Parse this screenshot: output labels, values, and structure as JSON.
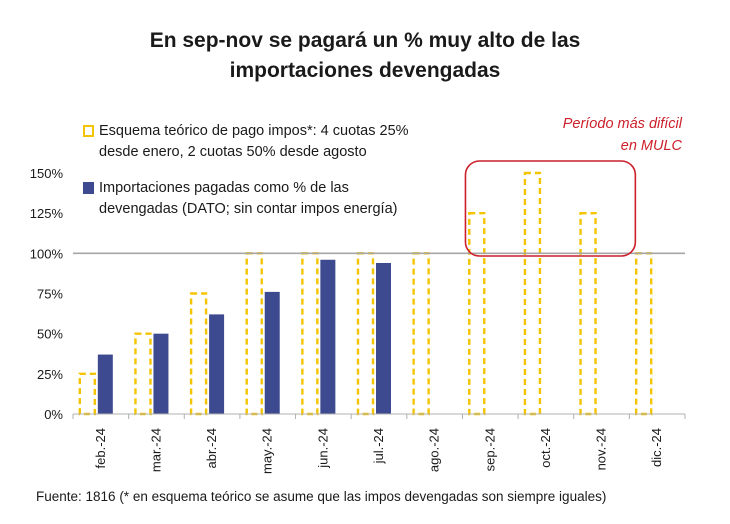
{
  "title_line1": "En sep-nov se pagará un % muy alto de las",
  "title_line2": "importaciones devengadas",
  "annotation_line1": "Período más difícil",
  "annotation_line2": "en MULC",
  "source": "Fuente: 1816 (* en esquema teórico se asume que las impos devengadas son siempre iguales)",
  "colors": {
    "theoretical": "#f5c400",
    "actual": "#3d4a8f",
    "annotation": "#cc1f2a",
    "reference_line": "#a6a6a6"
  },
  "chart_data": {
    "type": "bar",
    "categories": [
      "feb.-24",
      "mar.-24",
      "abr.-24",
      "may.-24",
      "jun.-24",
      "jul.-24",
      "ago.-24",
      "sep.-24",
      "oct.-24",
      "nov.-24",
      "dic.-24"
    ],
    "series": [
      {
        "name_line1": "Esquema teórico de pago impos*: 4 cuotas 25%",
        "name_line2": "desde enero, 2 cuotas 50% desde agosto",
        "style": "dashed-outline",
        "values": [
          25,
          50,
          75,
          100,
          100,
          100,
          100,
          125,
          150,
          125,
          100
        ]
      },
      {
        "name_line1": "Importaciones pagadas como % de las",
        "name_line2": "devengadas (DATO; sin contar impos energía)",
        "style": "solid",
        "values": [
          37,
          50,
          62,
          76,
          96,
          94,
          null,
          null,
          null,
          null,
          null
        ]
      }
    ],
    "y_ticks": [
      "0%",
      "25%",
      "50%",
      "75%",
      "100%",
      "125%",
      "150%"
    ],
    "ylim": [
      0,
      150
    ],
    "reference_line": 100,
    "highlight_categories": [
      "sep.-24",
      "oct.-24",
      "nov.-24"
    ]
  }
}
